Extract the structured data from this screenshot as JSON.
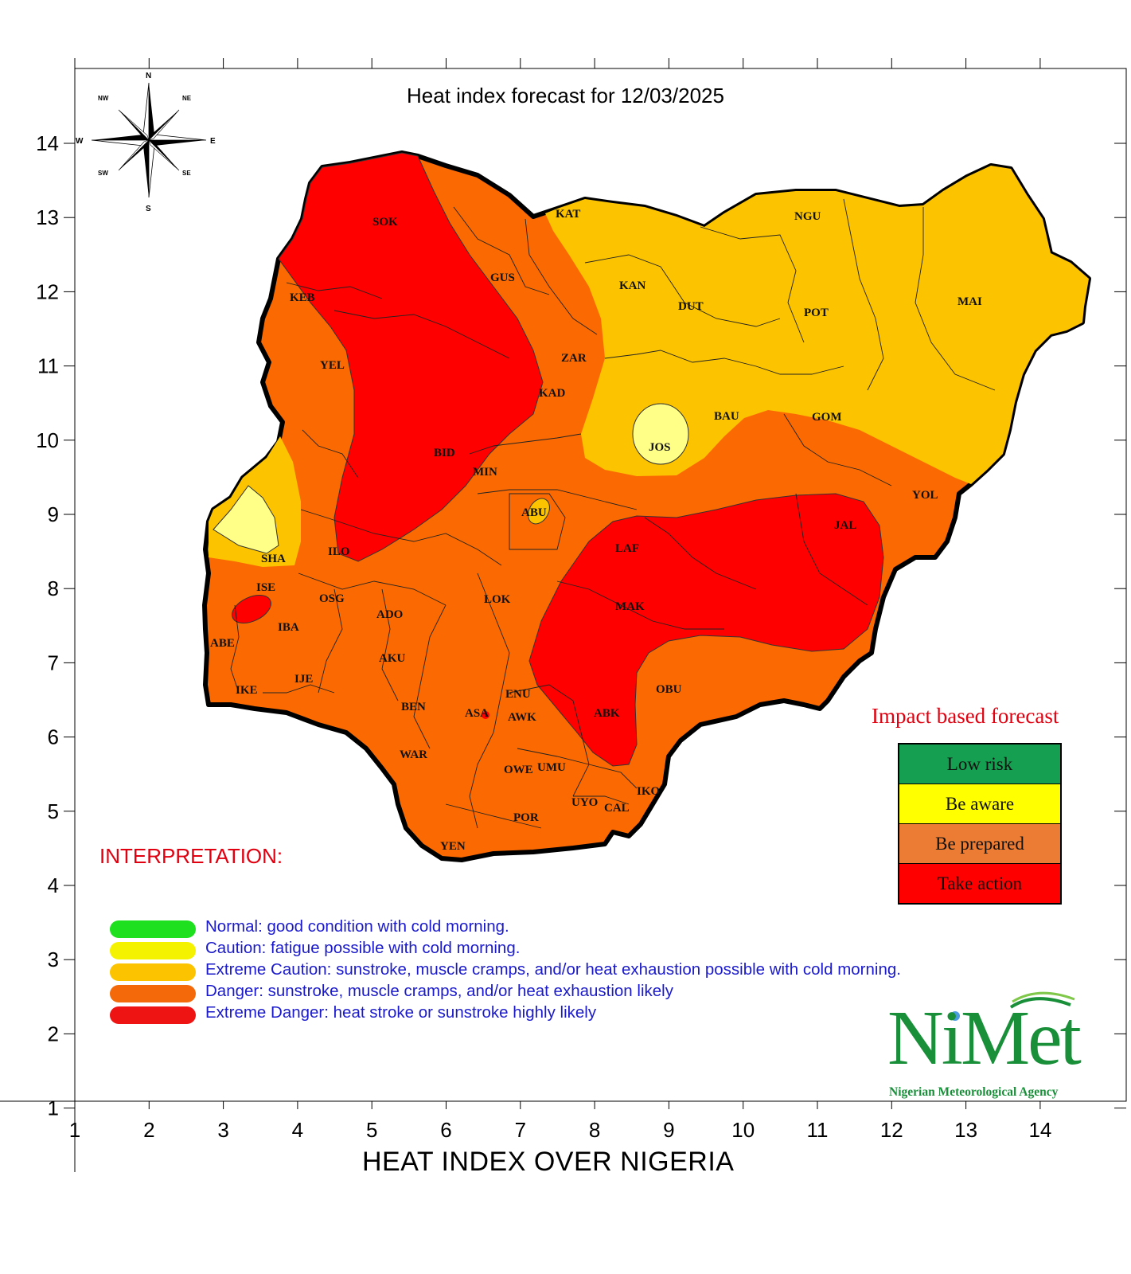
{
  "title": "Heat index forecast for 12/03/2025",
  "x_axis_title": "HEAT INDEX OVER NIGERIA",
  "x_ticks": [
    "1",
    "2",
    "3",
    "4",
    "5",
    "6",
    "7",
    "8",
    "9",
    "10",
    "11",
    "12",
    "13",
    "14"
  ],
  "y_ticks": [
    "14",
    "13",
    "12",
    "11",
    "10",
    "9",
    "8",
    "7",
    "6",
    "5",
    "4",
    "3",
    "2",
    "1"
  ],
  "compass": {
    "n": "N",
    "s": "S",
    "e": "E",
    "w": "W",
    "ne": "NE",
    "nw": "NW",
    "se": "SE",
    "sw": "SW"
  },
  "states": [
    "SOK",
    "KAT",
    "GUS",
    "KEB",
    "KAN",
    "DUT",
    "NGU",
    "POT",
    "MAI",
    "YEL",
    "ZAR",
    "KAD",
    "BAU",
    "GOM",
    "JOS",
    "BID",
    "MIN",
    "YOL",
    "ABU",
    "JAL",
    "ILO",
    "SHA",
    "LAF",
    "ISE",
    "OSG",
    "ADO",
    "LOK",
    "MAK",
    "IBA",
    "ABE",
    "AKU",
    "IJE",
    "IKE",
    "OBU",
    "ENU",
    "BEN",
    "ASA",
    "AWK",
    "ABK",
    "WAR",
    "OWE",
    "UMU",
    "IKO",
    "UYO",
    "CAL",
    "POR",
    "YEN"
  ],
  "interpretation_heading": "INTERPRETATION:",
  "interpretation": [
    {
      "text": "Normal: good condition with cold morning.",
      "color": "#1ee01e"
    },
    {
      "text": "Caution: fatigue possible  with cold morning.",
      "color": "#f5f200"
    },
    {
      "text": "Extreme Caution: sunstroke, muscle cramps, and/or heat exhaustion possible  with cold morning.",
      "color": "#fcc400"
    },
    {
      "text": "Danger: sunstroke, muscle cramps, and/or heat exhaustion likely",
      "color": "#f46a0a"
    },
    {
      "text": "Extreme Danger: heat stroke or sunstroke highly likely",
      "color": "#ee1414"
    }
  ],
  "impact": {
    "title": "Impact based forecast",
    "levels": [
      {
        "label": "Low risk",
        "color": "#14a050"
      },
      {
        "label": "Be aware",
        "color": "#ffff00"
      },
      {
        "label": "Be prepared",
        "color": "#ec7c34"
      },
      {
        "label": "Take action",
        "color": "#ff0000"
      }
    ]
  },
  "logo": {
    "name": "NiMet",
    "subtitle": "Nigerian Meteorological Agency"
  },
  "zone_colors": {
    "extreme_caution": "#fcc400",
    "caution": "#ffff88",
    "danger": "#fb6a02",
    "extreme_danger": "#ff0000"
  }
}
